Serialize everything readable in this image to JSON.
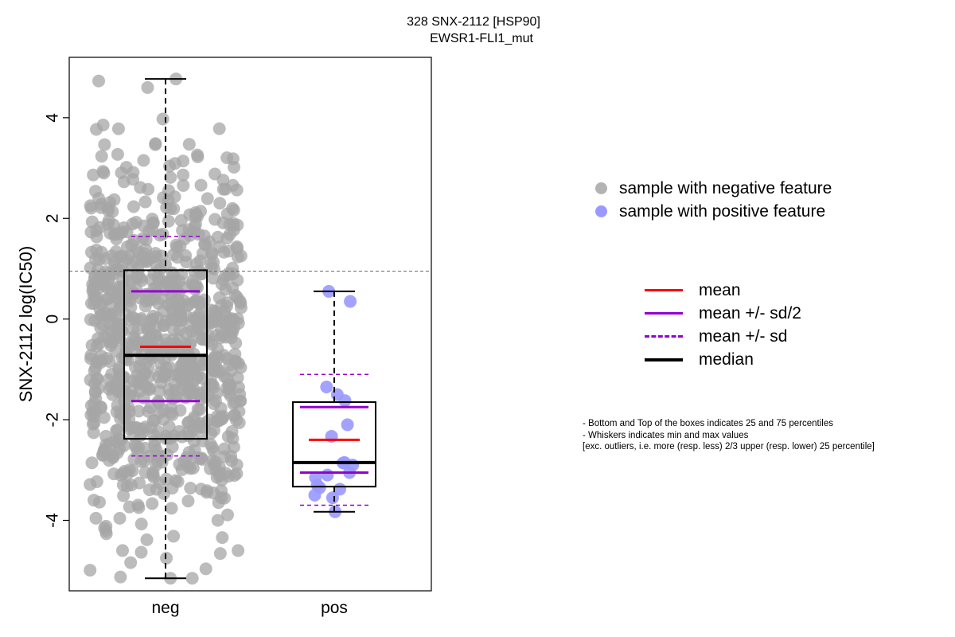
{
  "title": {
    "line1": "328 SNX-2112 [HSP90]",
    "line2": "EWSR1-FLI1_mut"
  },
  "colors": {
    "neg": "#a6a6a6",
    "pos": "#9999ff",
    "mean": "#ff0000",
    "sd": "#9400d3",
    "median": "#000000",
    "threshold": "#666666"
  },
  "legend_groups": [
    {
      "label": "sample with negative feature",
      "color": "#b3b3b3"
    },
    {
      "label": "sample with positive feature",
      "color": "#9999ff"
    }
  ],
  "legend_stats": [
    {
      "label": "mean",
      "color": "#ff0000",
      "style": "solid"
    },
    {
      "label": "mean +/- sd/2",
      "color": "#9400d3",
      "style": "solid"
    },
    {
      "label": "mean +/- sd",
      "color": "#9400d3",
      "style": "dashed"
    },
    {
      "label": "median",
      "color": "#000000",
      "style": "solid-thick"
    }
  ],
  "notes": [
    "- Bottom and Top of the boxes indicates 25 and 75 percentiles",
    "- Whiskers indicates min and max values",
    "[exc. outliers, i.e. more (resp. less) 2/3 upper (resp. lower) 25 percentile]"
  ],
  "chart_data": {
    "type": "box",
    "ylabel": "SNX-2112 log(IC50)",
    "xlabel": "",
    "categories": [
      "neg",
      "pos"
    ],
    "ylim": [
      -5.4,
      5.2
    ],
    "yticks": [
      -4,
      -2,
      0,
      2,
      4
    ],
    "ytick_labels": [
      "-4",
      "-2",
      "0",
      "2",
      "4"
    ],
    "threshold": 0.95,
    "groups": [
      {
        "name": "neg",
        "q1": -2.38,
        "median": -0.72,
        "q3": 0.97,
        "whisker_low": -5.15,
        "whisker_high": 4.77,
        "mean": -0.55,
        "mean_minus_half_sd": -1.63,
        "mean_plus_half_sd": 0.55,
        "mean_minus_sd": -2.72,
        "mean_plus_sd": 1.64,
        "n_points": 900,
        "points_note": "dense jittered cloud, approx. 900 cell lines",
        "extreme_points": [
          -5.15,
          -4.75,
          -4.6,
          4.77,
          4.73,
          4.6
        ]
      },
      {
        "name": "pos",
        "q1": -3.33,
        "median": -2.85,
        "q3": -1.65,
        "whisker_low": -3.83,
        "whisker_high": 0.55,
        "mean": -2.4,
        "mean_minus_half_sd": -3.05,
        "mean_plus_half_sd": -1.75,
        "mean_minus_sd": -3.7,
        "mean_plus_sd": -1.1,
        "points": [
          0.55,
          0.35,
          -1.35,
          -1.5,
          -1.62,
          -2.1,
          -2.33,
          -2.85,
          -2.9,
          -2.86,
          -3.05,
          -3.1,
          -3.15,
          -3.3,
          -3.35,
          -3.38,
          -3.5,
          -3.55,
          -3.83
        ]
      }
    ]
  }
}
